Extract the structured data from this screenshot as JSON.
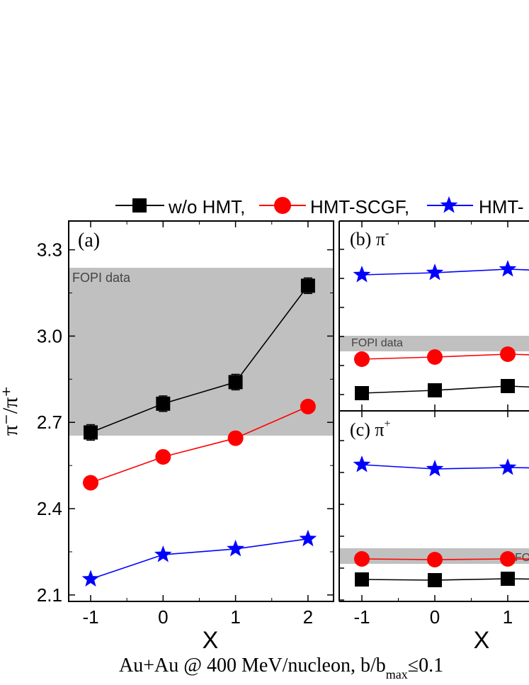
{
  "legend": {
    "entries": [
      {
        "label": "w/o HMT,",
        "color": "#000000",
        "marker": "square"
      },
      {
        "label": "HMT-SCGF,",
        "color": "#ff0000",
        "marker": "circle"
      },
      {
        "label": "HMT-",
        "color": "#0000ff",
        "marker": "star"
      }
    ]
  },
  "caption": {
    "main": "Au+Au @ 400 MeV/nucleon, b/b",
    "sub": "max",
    "tail": "≤0.1"
  },
  "chart_data": [
    {
      "type": "line",
      "panel_label": "(a)",
      "xlabel": "X",
      "ylabel": "π⁻/π⁺",
      "categories": [
        -1,
        0,
        1,
        2
      ],
      "x_ticks": [
        "-1",
        "0",
        "1",
        "2"
      ],
      "y_ticks": [
        "2.1",
        "2.4",
        "2.7",
        "3.0",
        "3.3"
      ],
      "xlim": [
        -1.5,
        2.3
      ],
      "ylim": [
        2.08,
        3.4
      ],
      "band": {
        "label": "FOPI data",
        "range": [
          2.65,
          3.23
        ],
        "color": "#c0c0c0"
      },
      "series": [
        {
          "name": "w/o HMT",
          "color": "#000000",
          "marker": "square",
          "values": [
            2.665,
            2.765,
            2.84,
            3.175
          ],
          "errors": [
            0.03,
            0.03,
            0.03,
            0.03
          ]
        },
        {
          "name": "HMT-SCGF",
          "color": "#ff0000",
          "marker": "circle",
          "values": [
            2.49,
            2.58,
            2.645,
            2.755
          ]
        },
        {
          "name": "HMT-",
          "color": "#0000ff",
          "marker": "star",
          "values": [
            2.155,
            2.24,
            2.26,
            2.295
          ]
        }
      ]
    },
    {
      "type": "line",
      "panel_label": "(b) π",
      "panel_sup": "-",
      "categories": [
        -1,
        0,
        1
      ],
      "xlim": [
        -1.5,
        1.5
      ],
      "band": {
        "label": "FOPI data",
        "color": "#c0c0c0"
      },
      "series": [
        {
          "name": "w/o HMT",
          "color": "#000000",
          "marker": "square",
          "values": [
            0.2,
            0.24,
            0.3
          ]
        },
        {
          "name": "HMT-SCGF",
          "color": "#ff0000",
          "marker": "circle",
          "values": [
            0.68,
            0.71,
            0.75
          ]
        },
        {
          "name": "HMT-",
          "color": "#0000ff",
          "marker": "star",
          "values": [
            1.87,
            1.9,
            1.95
          ]
        }
      ]
    },
    {
      "type": "line",
      "panel_label": "(c) π",
      "panel_sup": "+",
      "xlabel": "X",
      "x_ticks": [
        "-1",
        "0",
        "1"
      ],
      "categories": [
        -1,
        0,
        1
      ],
      "xlim": [
        -1.5,
        1.5
      ],
      "band": {
        "label": "FO",
        "color": "#c0c0c0"
      },
      "series": [
        {
          "name": "w/o HMT",
          "color": "#000000",
          "marker": "square",
          "values": [
            0.2,
            0.19,
            0.21
          ]
        },
        {
          "name": "HMT-SCGF",
          "color": "#ff0000",
          "marker": "circle",
          "values": [
            0.49,
            0.48,
            0.49
          ]
        },
        {
          "name": "HMT-",
          "color": "#0000ff",
          "marker": "star",
          "values": [
            1.82,
            1.76,
            1.78
          ]
        }
      ]
    }
  ]
}
